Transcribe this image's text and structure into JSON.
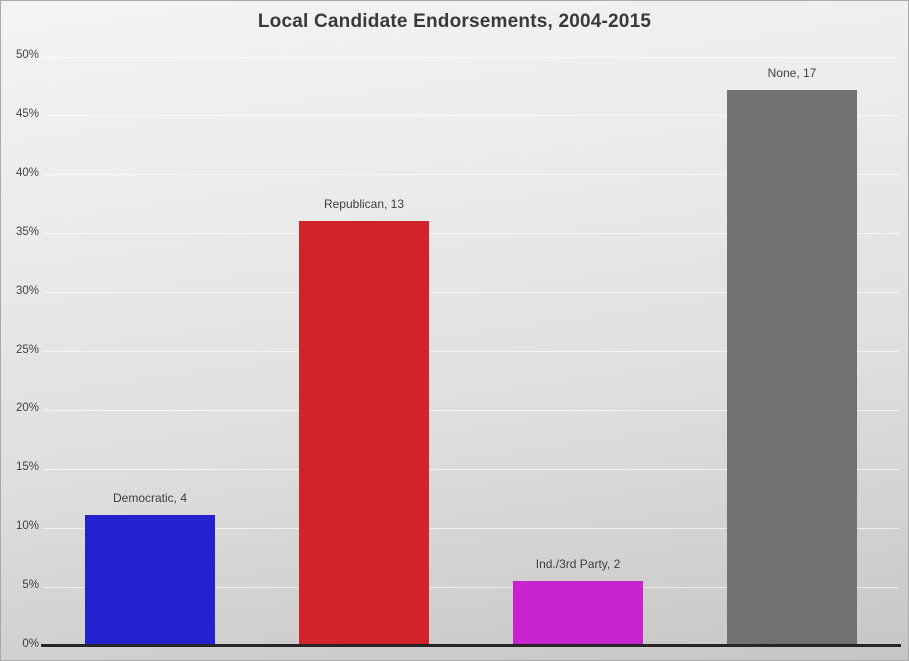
{
  "chart_data": {
    "type": "bar",
    "title": "Local Candidate Endorsements, 2004-2015",
    "categories": [
      "Democratic",
      "Republican",
      "Ind./3rd Party",
      "None"
    ],
    "values": [
      4,
      13,
      2,
      17
    ],
    "percents": [
      11.11,
      36.11,
      5.56,
      47.22
    ],
    "data_labels": [
      "Democratic, 4",
      "Republican, 13",
      "Ind./3rd Party, 2",
      "None, 17"
    ],
    "bar_colors": [
      "#2421ce",
      "#d2232a",
      "#c724ce",
      "#717171"
    ],
    "xlabel": "",
    "ylabel": "",
    "ylim": [
      0,
      50
    ],
    "ytick_step": 5,
    "ytick_labels": [
      "0%",
      "5%",
      "10%",
      "15%",
      "20%",
      "25%",
      "30%",
      "35%",
      "40%",
      "45%",
      "50%"
    ],
    "grid": true,
    "legend": "none",
    "data_label_position": "above-bar",
    "colors": {
      "background_top": "#f4f4f3",
      "background_bottom": "#c6c6c5",
      "gridline": "#ffffff",
      "axis_line": "#262626",
      "text": "#3e3e3e"
    }
  }
}
